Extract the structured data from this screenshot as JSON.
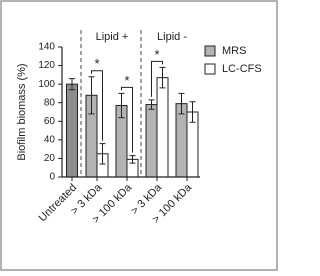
{
  "chart_data": {
    "type": "bar",
    "ylabel": "Biofilm biomass (%)",
    "categories": [
      "Untreated",
      "> 3 kDa",
      "> 100 kDa",
      "> 3 kDa",
      "> 100 kDa"
    ],
    "series": [
      {
        "name": "MRS",
        "color": "#b3b3b3",
        "values": [
          100,
          88,
          77,
          78,
          79
        ],
        "errors": [
          6,
          20,
          13,
          5,
          11
        ]
      },
      {
        "name": "LC-CFS",
        "color": "#ffffff",
        "values": [
          null,
          25,
          19,
          107,
          70
        ],
        "errors": [
          null,
          11,
          4,
          11,
          11
        ]
      }
    ],
    "group_labels": [
      "Lipid +",
      "Lipid -"
    ],
    "significance": [
      "*",
      "*",
      "*"
    ],
    "ylim": [
      0,
      140
    ],
    "yticks": [
      0,
      20,
      40,
      60,
      80,
      100,
      120,
      140
    ],
    "legend": "right"
  }
}
